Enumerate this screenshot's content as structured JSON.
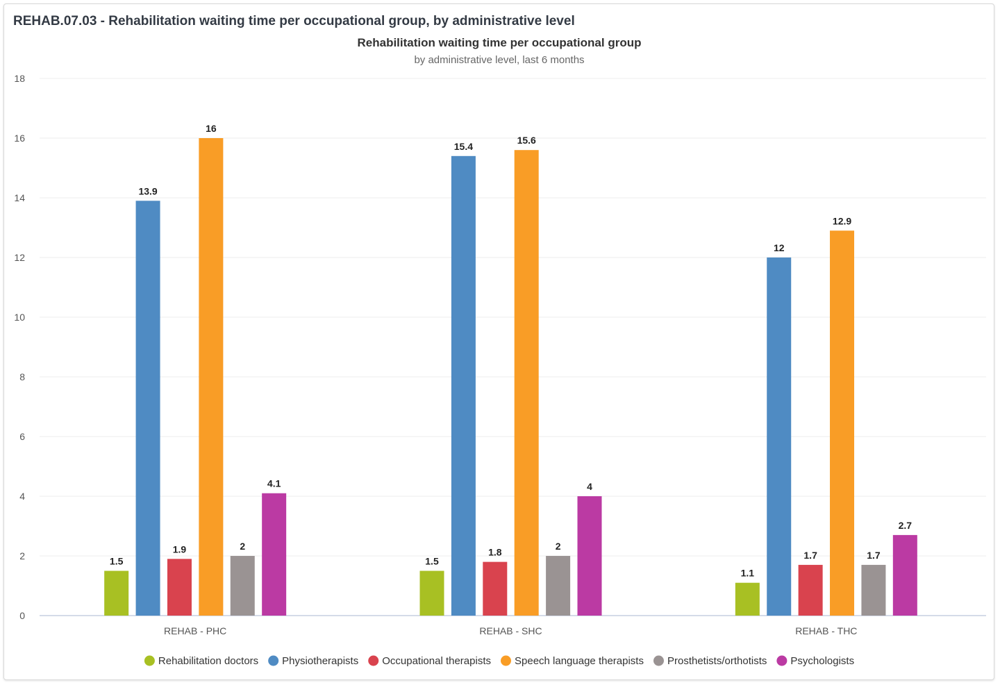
{
  "header": {
    "title": "REHAB.07.03 - Rehabilitation waiting time per occupational group, by administrative level"
  },
  "chart_data": {
    "type": "bar",
    "title": "Rehabilitation waiting time per occupational group",
    "subtitle": "by administrative level, last 6 months",
    "xlabel": "",
    "ylabel": "",
    "ylim": [
      0,
      18
    ],
    "yticks": [
      0,
      2,
      4,
      6,
      8,
      10,
      12,
      14,
      16,
      18
    ],
    "grid": true,
    "legend_position": "bottom",
    "categories": [
      "REHAB - PHC",
      "REHAB - SHC",
      "REHAB - THC"
    ],
    "series": [
      {
        "name": "Rehabilitation doctors",
        "color": "#a8c023",
        "values": [
          1.5,
          1.5,
          1.1
        ]
      },
      {
        "name": "Physiotherapists",
        "color": "#4f8bc3",
        "values": [
          13.9,
          15.4,
          12
        ]
      },
      {
        "name": "Occupational therapists",
        "color": "#d9434e",
        "values": [
          1.9,
          1.8,
          1.7
        ]
      },
      {
        "name": "Speech language therapists",
        "color": "#f99d26",
        "values": [
          16,
          15.6,
          12.9
        ]
      },
      {
        "name": "Prosthetists/orthotists",
        "color": "#9a9393",
        "values": [
          2,
          2,
          1.7
        ]
      },
      {
        "name": "Psychologists",
        "color": "#bb3aa3",
        "values": [
          4.1,
          4,
          2.7
        ]
      }
    ]
  }
}
